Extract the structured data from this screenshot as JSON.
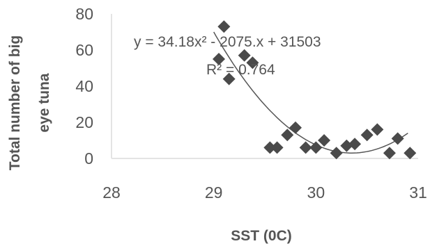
{
  "chart_data": {
    "type": "scatter",
    "title": "",
    "xlabel": "SST (0C)",
    "ylabel_lines": [
      "Total number of big",
      "eye  tuna"
    ],
    "xlim": [
      28,
      31
    ],
    "ylim": [
      0,
      80
    ],
    "xticks": [
      "28",
      "29",
      "30",
      "31"
    ],
    "yticks": [
      "0",
      "20",
      "40",
      "60",
      "80"
    ],
    "grid": false,
    "legend": "none",
    "marker": "diamond",
    "marker_color": "#4a4a4a",
    "trendline_color": "#555555",
    "points": [
      {
        "x": 29.05,
        "y": 55
      },
      {
        "x": 29.1,
        "y": 73
      },
      {
        "x": 29.15,
        "y": 44
      },
      {
        "x": 29.3,
        "y": 57
      },
      {
        "x": 29.38,
        "y": 53
      },
      {
        "x": 29.55,
        "y": 6
      },
      {
        "x": 29.62,
        "y": 6
      },
      {
        "x": 29.72,
        "y": 13
      },
      {
        "x": 29.8,
        "y": 17
      },
      {
        "x": 29.9,
        "y": 6
      },
      {
        "x": 30.0,
        "y": 6
      },
      {
        "x": 30.08,
        "y": 10
      },
      {
        "x": 30.2,
        "y": 3
      },
      {
        "x": 30.3,
        "y": 7
      },
      {
        "x": 30.38,
        "y": 8
      },
      {
        "x": 30.5,
        "y": 13
      },
      {
        "x": 30.6,
        "y": 16
      },
      {
        "x": 30.72,
        "y": 3
      },
      {
        "x": 30.8,
        "y": 11
      },
      {
        "x": 30.92,
        "y": 3
      }
    ],
    "trendline": {
      "type": "polynomial",
      "order": 2,
      "x_range": [
        29.0,
        30.9
      ],
      "y_at_min_x": 70,
      "y_at_max_x": 14,
      "vertex_x": 30.35,
      "vertex_y": 3,
      "equation": "y = 34.18x² - 2075.x + 31503",
      "r_squared": "R² = 0.764"
    }
  }
}
